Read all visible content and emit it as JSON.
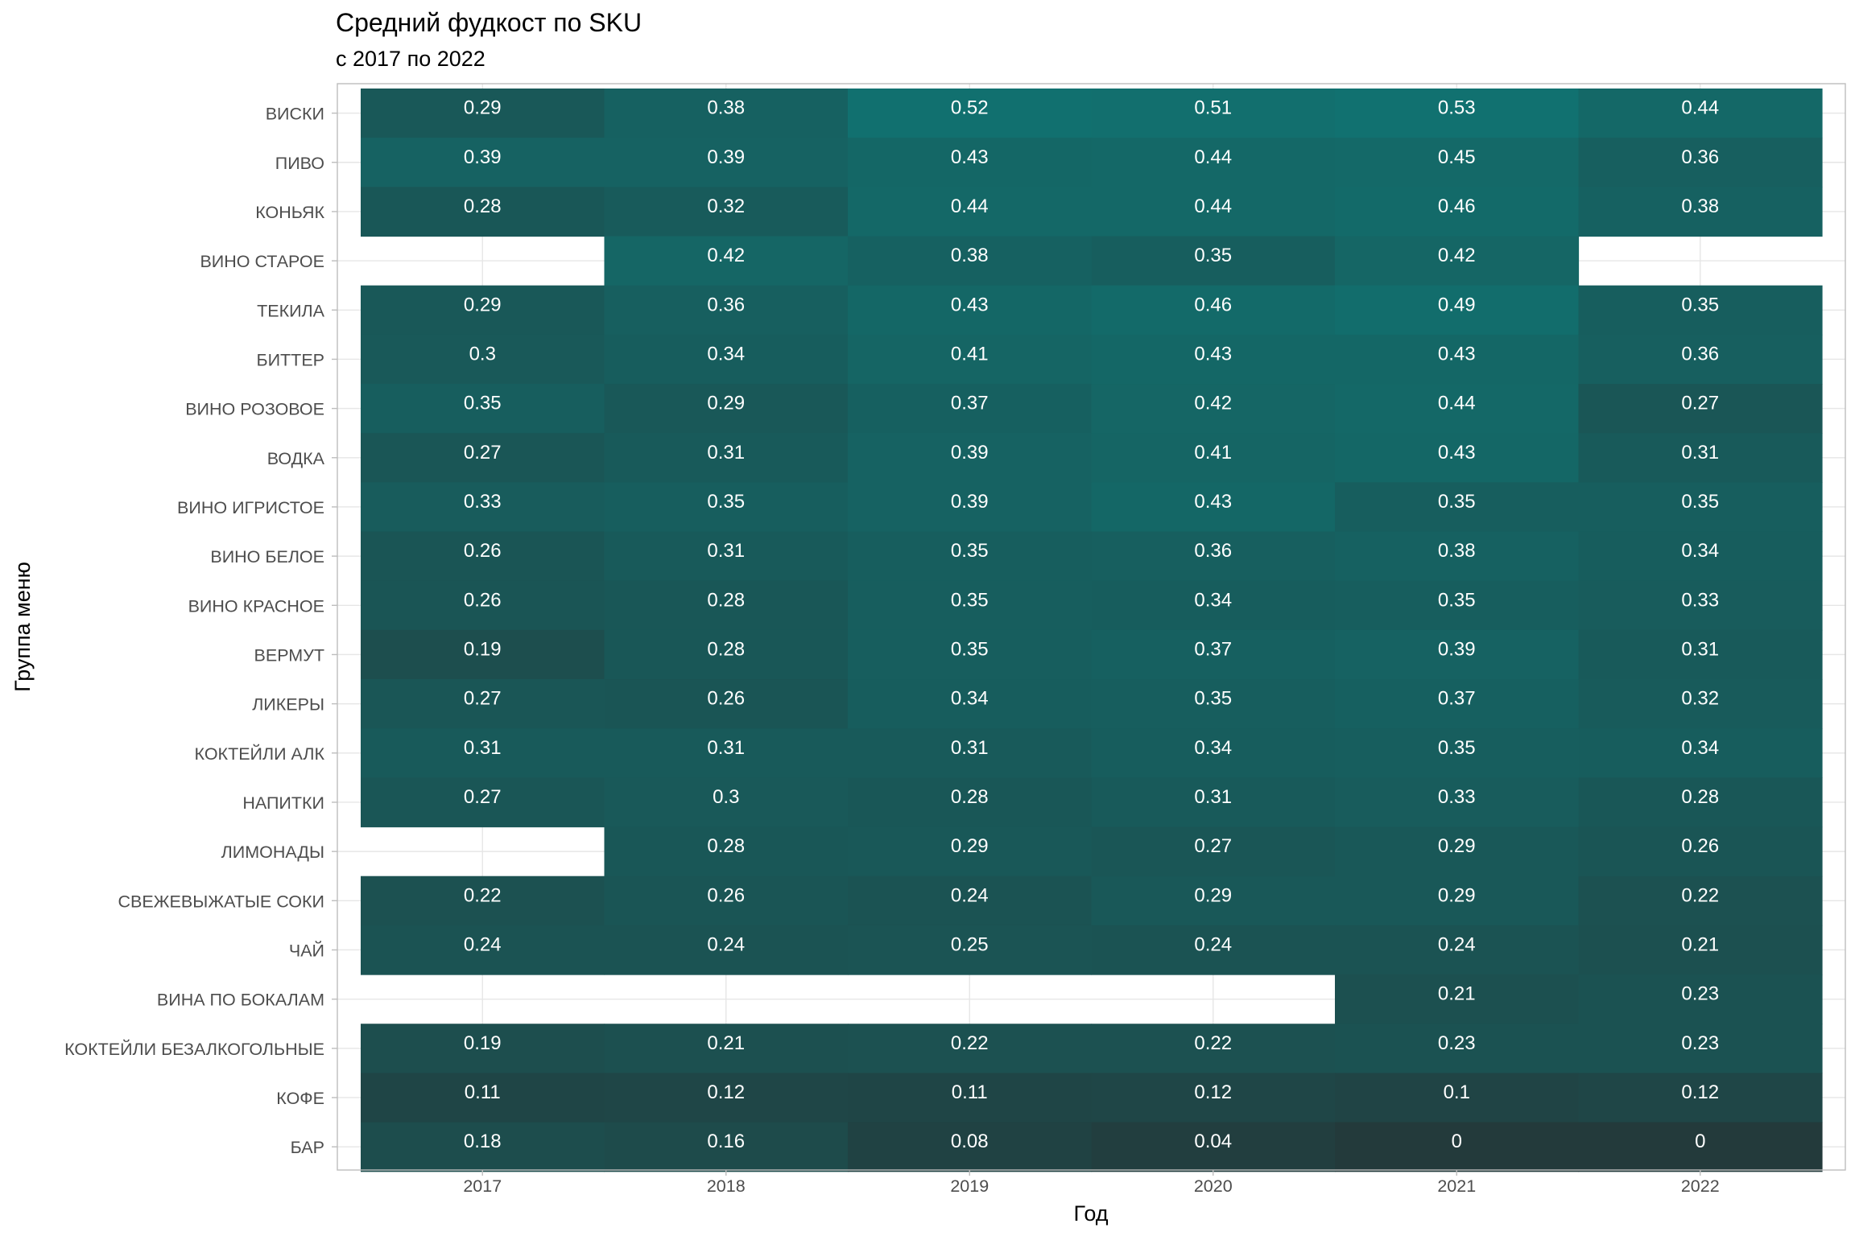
{
  "chart_data": {
    "type": "heatmap",
    "title": "Средний фудкост по  SKU",
    "subtitle": "с 2017 по 2022",
    "xlabel": "Год",
    "ylabel": "Группа меню",
    "x": [
      "2017",
      "2018",
      "2019",
      "2020",
      "2021",
      "2022"
    ],
    "y": [
      "ВИСКИ",
      "ПИВО",
      "КОНЬЯК",
      "ВИНО СТАРОЕ",
      "ТЕКИЛА",
      "БИТТЕР",
      "ВИНО РОЗОВОЕ",
      "ВОДКА",
      "ВИНО ИГРИСТОЕ",
      "ВИНО БЕЛОЕ",
      "ВИНО КРАСНОЕ",
      "ВЕРМУТ",
      "ЛИКЕРЫ",
      "КОКТЕЙЛИ АЛК",
      "НАПИТКИ",
      "ЛИМОНАДЫ",
      "СВЕЖЕВЫЖАТЫЕ СОКИ",
      "ЧАЙ",
      "ВИНА ПО БОКАЛАМ",
      "КОКТЕЙЛИ БЕЗАЛКОГОЛЬНЫЕ",
      "КОФЕ",
      "БАР"
    ],
    "values": [
      [
        0.29,
        0.38,
        0.52,
        0.51,
        0.53,
        0.44
      ],
      [
        0.39,
        0.39,
        0.43,
        0.44,
        0.45,
        0.36
      ],
      [
        0.28,
        0.32,
        0.44,
        0.44,
        0.46,
        0.38
      ],
      [
        null,
        0.42,
        0.38,
        0.35,
        0.42,
        null
      ],
      [
        0.29,
        0.36,
        0.43,
        0.46,
        0.49,
        0.35
      ],
      [
        0.3,
        0.34,
        0.41,
        0.43,
        0.43,
        0.36
      ],
      [
        0.35,
        0.29,
        0.37,
        0.42,
        0.44,
        0.27
      ],
      [
        0.27,
        0.31,
        0.39,
        0.41,
        0.43,
        0.31
      ],
      [
        0.33,
        0.35,
        0.39,
        0.43,
        0.35,
        0.35
      ],
      [
        0.26,
        0.31,
        0.35,
        0.36,
        0.38,
        0.34
      ],
      [
        0.26,
        0.28,
        0.35,
        0.34,
        0.35,
        0.33
      ],
      [
        0.19,
        0.28,
        0.35,
        0.37,
        0.39,
        0.31
      ],
      [
        0.27,
        0.26,
        0.34,
        0.35,
        0.37,
        0.32
      ],
      [
        0.31,
        0.31,
        0.31,
        0.34,
        0.35,
        0.34
      ],
      [
        0.27,
        0.3,
        0.28,
        0.31,
        0.33,
        0.28
      ],
      [
        null,
        0.28,
        0.29,
        0.27,
        0.29,
        0.26
      ],
      [
        0.22,
        0.26,
        0.24,
        0.29,
        0.29,
        0.22
      ],
      [
        0.24,
        0.24,
        0.25,
        0.24,
        0.24,
        0.21
      ],
      [
        null,
        null,
        null,
        null,
        0.21,
        0.23
      ],
      [
        0.19,
        0.21,
        0.22,
        0.22,
        0.23,
        0.23
      ],
      [
        0.11,
        0.12,
        0.11,
        0.12,
        0.1,
        0.12
      ],
      [
        0.18,
        0.16,
        0.08,
        0.04,
        0,
        0
      ]
    ],
    "color_low": "#233a3b",
    "color_high": "#117170",
    "grid": true,
    "legend": "none"
  }
}
